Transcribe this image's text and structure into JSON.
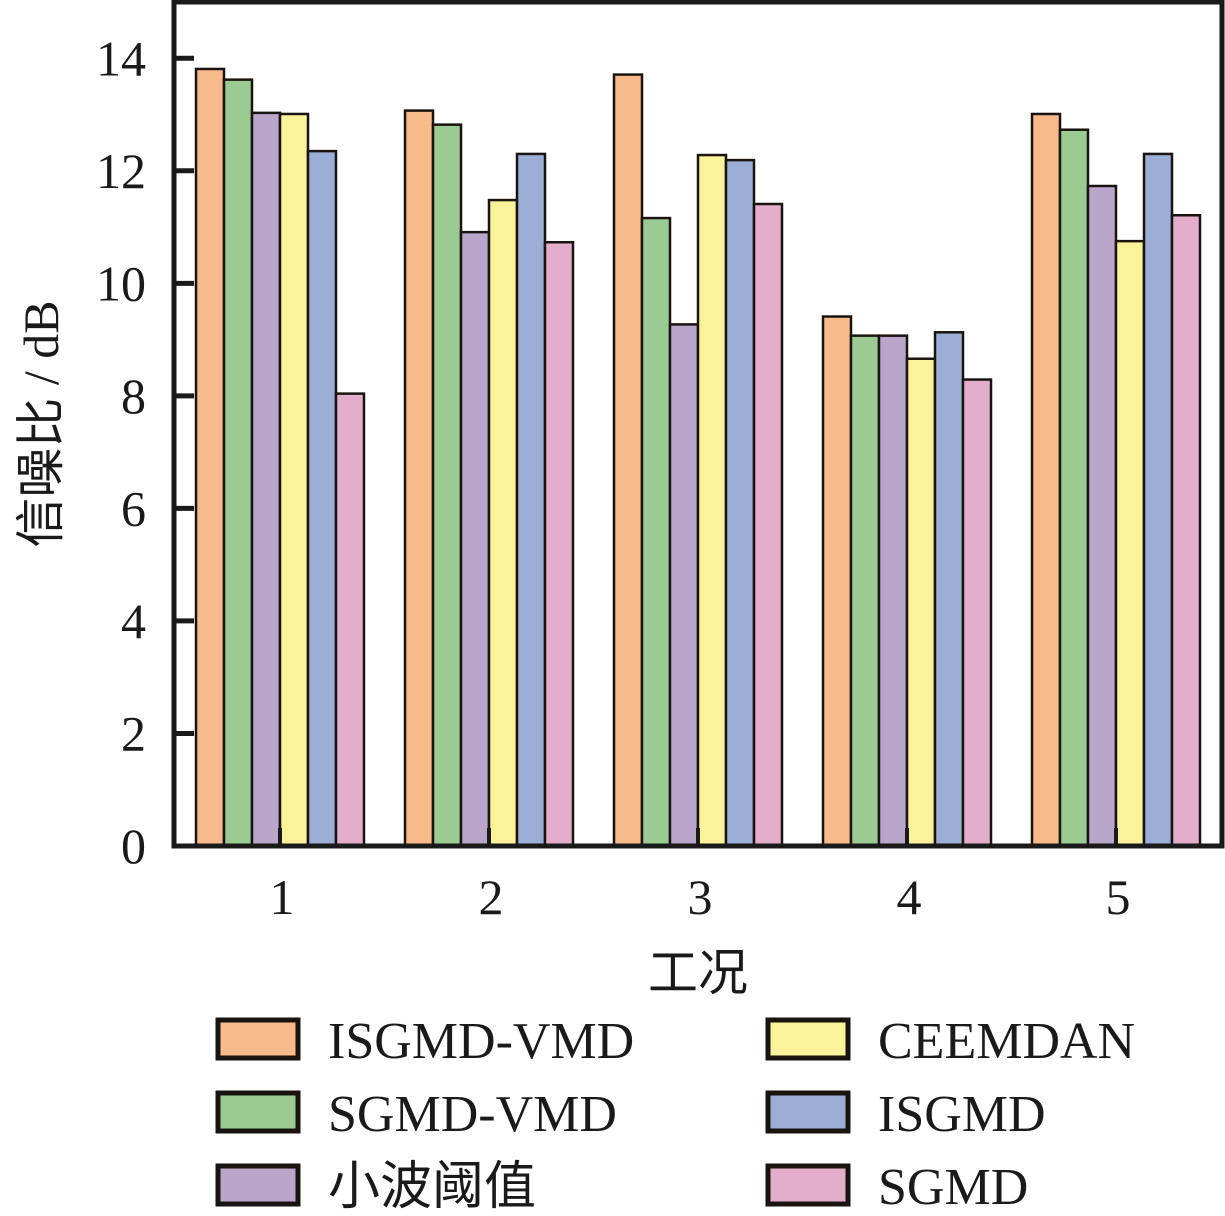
{
  "chart_data": {
    "type": "bar",
    "title": "",
    "xlabel": "工况",
    "ylabel": "信噪比 / dB",
    "categories": [
      "1",
      "2",
      "3",
      "4",
      "5"
    ],
    "ylim": [
      0,
      15
    ],
    "yticks": [
      0,
      2,
      4,
      6,
      8,
      10,
      12,
      14
    ],
    "ytick_labels": [
      "0",
      "2",
      "4",
      "6",
      "8",
      "10",
      "12",
      "14"
    ],
    "grid": false,
    "legend_position": "bottom",
    "series": [
      {
        "name": "ISGMD-VMD",
        "color": "#F8B98B",
        "values": [
          13.81,
          13.07,
          13.71,
          9.41,
          13.01
        ]
      },
      {
        "name": "SGMD-VMD",
        "color": "#9BCB93",
        "values": [
          13.62,
          12.82,
          11.16,
          9.07,
          12.73
        ]
      },
      {
        "name": "小波阈值",
        "color": "#BAA5CB",
        "values": [
          13.03,
          10.91,
          9.27,
          9.07,
          11.73
        ]
      },
      {
        "name": "CEEMDAN",
        "color": "#FAF39A",
        "values": [
          13.01,
          11.48,
          12.28,
          8.66,
          10.75
        ]
      },
      {
        "name": "ISGMD",
        "color": "#9BAED6",
        "values": [
          12.35,
          12.3,
          12.19,
          9.13,
          12.3
        ]
      },
      {
        "name": "SGMD",
        "color": "#E5ADCC",
        "values": [
          8.04,
          10.73,
          11.41,
          8.29,
          11.21
        ]
      }
    ]
  }
}
